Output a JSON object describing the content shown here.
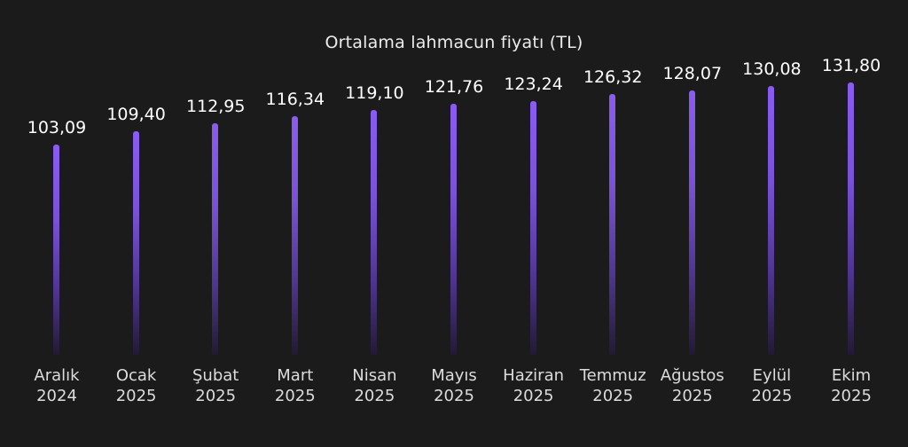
{
  "chart_data": {
    "type": "bar",
    "title": "Ortalama lahmacun fiyatı (TL)",
    "xlabel": "",
    "ylabel": "",
    "grid": false,
    "legend": null,
    "categories": [
      "Aralık 2024",
      "Ocak 2025",
      "Şubat 2025",
      "Mart 2025",
      "Nisan 2025",
      "Mayıs 2025",
      "Haziran 2025",
      "Temmuz 2025",
      "Ağustos 2025",
      "Eylül 2025",
      "Ekim 2025"
    ],
    "values": [
      103.09,
      109.4,
      112.95,
      116.34,
      119.1,
      121.76,
      123.24,
      126.32,
      128.07,
      130.08,
      131.8
    ],
    "value_labels": [
      "103,09",
      "109,40",
      "112,95",
      "116,34",
      "119,10",
      "121,76",
      "123,24",
      "126,32",
      "128,07",
      "130,08",
      "131,80"
    ],
    "bar_color": "#8a5cf0"
  },
  "bars": [
    {
      "month": "Aralık",
      "year": "2024",
      "label": "103,09",
      "value": 103.09
    },
    {
      "month": "Ocak",
      "year": "2025",
      "label": "109,40",
      "value": 109.4
    },
    {
      "month": "Şubat",
      "year": "2025",
      "label": "112,95",
      "value": 112.95
    },
    {
      "month": "Mart",
      "year": "2025",
      "label": "116,34",
      "value": 116.34
    },
    {
      "month": "Nisan",
      "year": "2025",
      "label": "119,10",
      "value": 119.1
    },
    {
      "month": "Mayıs",
      "year": "2025",
      "label": "121,76",
      "value": 121.76
    },
    {
      "month": "Haziran",
      "year": "2025",
      "label": "123,24",
      "value": 123.24
    },
    {
      "month": "Temmuz",
      "year": "2025",
      "label": "126,32",
      "value": 126.32
    },
    {
      "month": "Ağustos",
      "year": "2025",
      "label": "128,07",
      "value": 128.07
    },
    {
      "month": "Eylül",
      "year": "2025",
      "label": "130,08",
      "value": 130.08
    },
    {
      "month": "Ekim",
      "year": "2025",
      "label": "131,80",
      "value": 131.8
    }
  ]
}
